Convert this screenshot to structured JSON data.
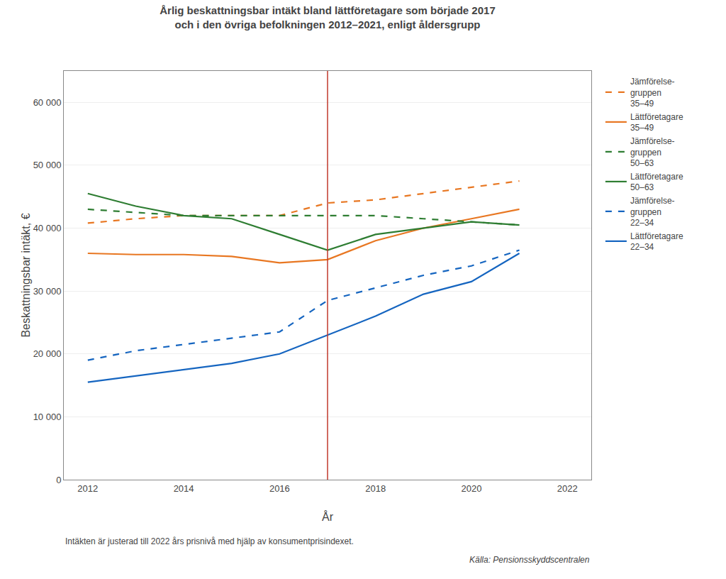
{
  "chart_data": {
    "type": "line",
    "title": "Årlig beskattningsbar intäkt bland lättföretagare som började 2017\noch i den övriga befolkningen 2012–2021, enligt åldersgrupp",
    "xlabel": "År",
    "ylabel": "Beskattningsbar intäkt, €",
    "footnote": "Intäkten är justerad till 2022 års prisnivå med hjälp av konsumentprisindexet.",
    "source": "Källa: Pensionsskyddscentralen",
    "x": [
      2012,
      2013,
      2014,
      2015,
      2016,
      2017,
      2018,
      2019,
      2020,
      2021
    ],
    "xlim": [
      2011.5,
      2022.5
    ],
    "xticks": [
      2012,
      2014,
      2016,
      2018,
      2020,
      2022
    ],
    "ylim": [
      0,
      65000
    ],
    "yticks": [
      0,
      {
        "value": 10000,
        "label": "10 000"
      },
      {
        "value": 20000,
        "label": "20 000"
      },
      {
        "value": 30000,
        "label": "30 000"
      },
      {
        "value": 40000,
        "label": "40 000"
      },
      {
        "value": 50000,
        "label": "50 000"
      },
      {
        "value": 60000,
        "label": "60 000"
      }
    ],
    "grid": "y",
    "legend": "right",
    "vline": {
      "x": 2017,
      "color": "#C0392B"
    },
    "series": [
      {
        "name": "Jämförelse-\ngruppen\n35–49",
        "color": "#E87722",
        "line_style": "dashed",
        "values": [
          40800,
          41500,
          42000,
          42000,
          42000,
          44000,
          44500,
          45500,
          46500,
          47500
        ]
      },
      {
        "name": "Lättföretagare\n35–49",
        "color": "#E87722",
        "line_style": "solid",
        "values": [
          36000,
          35800,
          35800,
          35500,
          34500,
          35000,
          38000,
          40000,
          41500,
          43000
        ]
      },
      {
        "name": "Jämförelse-\ngruppen\n50–63",
        "color": "#2E7D32",
        "line_style": "dashed",
        "values": [
          43000,
          42500,
          42000,
          42000,
          42000,
          42000,
          42000,
          41500,
          41000,
          40500
        ]
      },
      {
        "name": "Lättföretagare\n50–63",
        "color": "#2E7D32",
        "line_style": "solid",
        "values": [
          45500,
          43500,
          42000,
          41500,
          39000,
          36500,
          39000,
          40000,
          41000,
          40500
        ]
      },
      {
        "name": "Jämförelse-\ngruppen\n22–34",
        "color": "#1565C0",
        "line_style": "dashed",
        "values": [
          19000,
          20500,
          21500,
          22500,
          23500,
          28500,
          30500,
          32500,
          34000,
          36500
        ]
      },
      {
        "name": "Lättföretagare\n22–34",
        "color": "#1565C0",
        "line_style": "solid",
        "values": [
          15500,
          16500,
          17500,
          18500,
          20000,
          23000,
          26000,
          29500,
          31500,
          36000
        ]
      }
    ]
  }
}
